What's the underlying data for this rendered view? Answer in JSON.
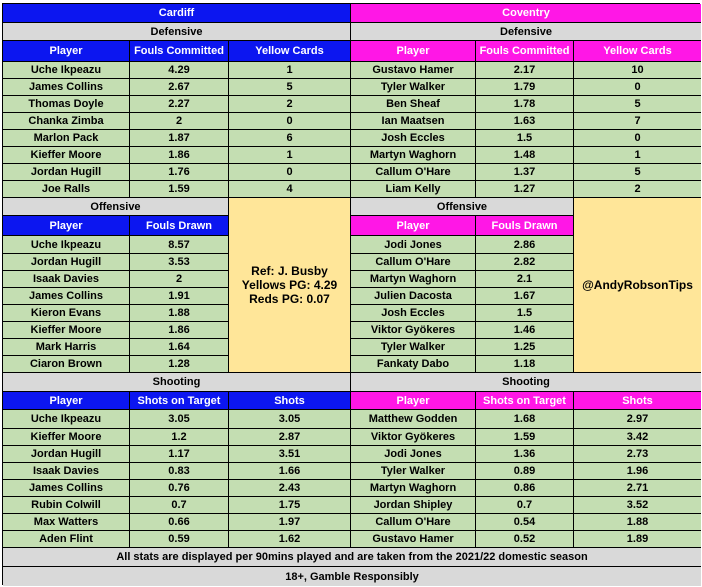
{
  "colors": {
    "cardiff_header": "#0c16f0",
    "coventry_header": "#ff17e6",
    "data_fill": "#c4deb2",
    "section_fill": "#d9d9d9",
    "info_fill": "#ffe699"
  },
  "teams": {
    "left": "Cardiff",
    "right": "Coventry"
  },
  "sections": {
    "defensive": "Defensive",
    "offensive": "Offensive",
    "shooting": "Shooting"
  },
  "columns": {
    "defensive": [
      "Player",
      "Fouls Committed",
      "Yellow Cards"
    ],
    "offensive": [
      "Player",
      "Fouls Drawn"
    ],
    "shooting": [
      "Player",
      "Shots on Target",
      "Shots"
    ]
  },
  "cardiff": {
    "defensive": [
      [
        "Uche Ikpeazu",
        "4.29",
        "1"
      ],
      [
        "James Collins",
        "2.67",
        "5"
      ],
      [
        "Thomas Doyle",
        "2.27",
        "2"
      ],
      [
        "Chanka Zimba",
        "2",
        "0"
      ],
      [
        "Marlon Pack",
        "1.87",
        "6"
      ],
      [
        "Kieffer Moore",
        "1.86",
        "1"
      ],
      [
        "Jordan Hugill",
        "1.76",
        "0"
      ],
      [
        "Joe Ralls",
        "1.59",
        "4"
      ]
    ],
    "offensive": [
      [
        "Uche Ikpeazu",
        "8.57"
      ],
      [
        "Jordan Hugill",
        "3.53"
      ],
      [
        "Isaak Davies",
        "2"
      ],
      [
        "James Collins",
        "1.91"
      ],
      [
        "Kieron Evans",
        "1.88"
      ],
      [
        "Kieffer Moore",
        "1.86"
      ],
      [
        "Mark Harris",
        "1.64"
      ],
      [
        "Ciaron Brown",
        "1.28"
      ]
    ],
    "shooting": [
      [
        "Uche Ikpeazu",
        "3.05",
        "3.05"
      ],
      [
        "Kieffer Moore",
        "1.2",
        "2.87"
      ],
      [
        "Jordan Hugill",
        "1.17",
        "3.51"
      ],
      [
        "Isaak Davies",
        "0.83",
        "1.66"
      ],
      [
        "James Collins",
        "0.76",
        "2.43"
      ],
      [
        "Rubin Colwill",
        "0.7",
        "1.75"
      ],
      [
        "Max Watters",
        "0.66",
        "1.97"
      ],
      [
        "Aden Flint",
        "0.59",
        "1.62"
      ]
    ]
  },
  "coventry": {
    "defensive": [
      [
        "Gustavo Hamer",
        "2.17",
        "10"
      ],
      [
        "Tyler Walker",
        "1.79",
        "0"
      ],
      [
        "Ben Sheaf",
        "1.78",
        "5"
      ],
      [
        "Ian Maatsen",
        "1.63",
        "7"
      ],
      [
        "Josh Eccles",
        "1.5",
        "0"
      ],
      [
        "Martyn Waghorn",
        "1.48",
        "1"
      ],
      [
        "Callum O'Hare",
        "1.37",
        "5"
      ],
      [
        "Liam Kelly",
        "1.27",
        "2"
      ]
    ],
    "offensive": [
      [
        "Jodi Jones",
        "2.86"
      ],
      [
        "Callum O'Hare",
        "2.82"
      ],
      [
        "Martyn Waghorn",
        "2.1"
      ],
      [
        "Julien Dacosta",
        "1.67"
      ],
      [
        "Josh Eccles",
        "1.5"
      ],
      [
        "Viktor Gyökeres",
        "1.46"
      ],
      [
        "Tyler Walker",
        "1.25"
      ],
      [
        "Fankaty Dabo",
        "1.18"
      ]
    ],
    "shooting": [
      [
        "Matthew Godden",
        "1.68",
        "2.97"
      ],
      [
        "Viktor Gyökeres",
        "1.59",
        "3.42"
      ],
      [
        "Jodi Jones",
        "1.36",
        "2.73"
      ],
      [
        "Tyler Walker",
        "0.89",
        "1.96"
      ],
      [
        "Martyn Waghorn",
        "0.86",
        "2.71"
      ],
      [
        "Jordan Shipley",
        "0.7",
        "3.52"
      ],
      [
        "Callum O'Hare",
        "0.54",
        "1.88"
      ],
      [
        "Gustavo Hamer",
        "0.52",
        "1.89"
      ]
    ]
  },
  "referee": {
    "name": "Ref: J. Busby",
    "yellows": "Yellows PG: 4.29",
    "reds": "Reds PG: 0.07"
  },
  "handle": "@AndyRobsonTips",
  "footer": {
    "note": "All stats are displayed per 90mins played and are taken from the 2021/22 domestic season",
    "gamble": "18+, Gamble Responsibly"
  }
}
